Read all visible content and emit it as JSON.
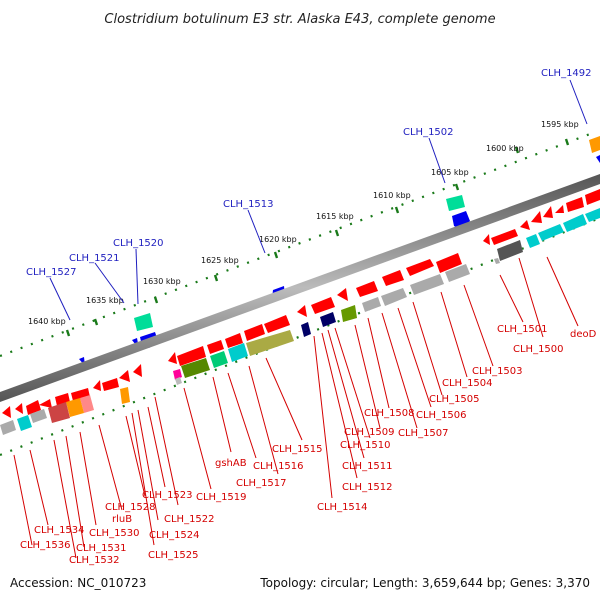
{
  "title": "Clostridium botulinum E3 str. Alaska E43, complete genome",
  "accession": "Accession: NC_010723",
  "summary": "Topology: circular; Length: 3,659,644 bp; Genes: 3,370",
  "kbp_labels": [
    "1595 kbp",
    "1600 kbp",
    "1605 kbp",
    "1610 kbp",
    "1615 kbp",
    "1620 kbp",
    "1625 kbp",
    "1630 kbp",
    "1635 kbp",
    "1640 kbp"
  ],
  "top_gene_labels": [
    "CLH_1492",
    "CLH_1502",
    "CLH_1513",
    "CLH_1520",
    "CLH_1521",
    "CLH_1527"
  ],
  "bottom_gene_labels": [
    "CLH_1534",
    "CLH_1536",
    "CLH_1530",
    "CLH_1532",
    "CLH_1531",
    "rluB",
    "CLH_1528",
    "CLH_1523",
    "CLH_1522",
    "CLH_1524",
    "CLH_1525",
    "CLH_1519",
    "gshAB",
    "CLH_1516",
    "CLH_1517",
    "CLH_1515",
    "CLH_1514",
    "CLH_1512",
    "CLH_1511",
    "CLH_1510",
    "CLH_1509",
    "CLH_1508",
    "CLH_1507",
    "CLH_1506",
    "CLH_1505",
    "CLH_1504",
    "CLH_1503",
    "CLH_1501",
    "CLH_1500",
    "deoD"
  ],
  "colors": {
    "forward_gene": "#ff0000",
    "reverse_gene": "#0000ff",
    "green_gene": "#00cc88",
    "backbone": "#888888",
    "tick": "#1a7a1a",
    "label_blue": "#1f1fbf",
    "label_red": "#d40000"
  }
}
